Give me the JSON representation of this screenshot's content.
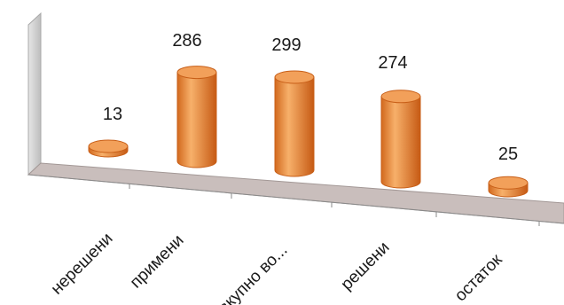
{
  "chart_data": {
    "type": "bar",
    "style": "3d-cylinder",
    "categories": [
      "нерешени",
      "примени",
      "вкупно во...",
      "решени",
      "остаток"
    ],
    "values": [
      13,
      286,
      299,
      274,
      25
    ],
    "title": "",
    "xlabel": "",
    "ylabel": "",
    "ylim": [
      0,
      320
    ],
    "grid": false,
    "legend": "none",
    "data_labels": true
  },
  "colors": {
    "bar_top": "#f2a05a",
    "bar_side_light": "#f7b06a",
    "bar_side_dark": "#c85f18",
    "floor": "#c9bebc",
    "back_wall": "#d0d0d0"
  }
}
